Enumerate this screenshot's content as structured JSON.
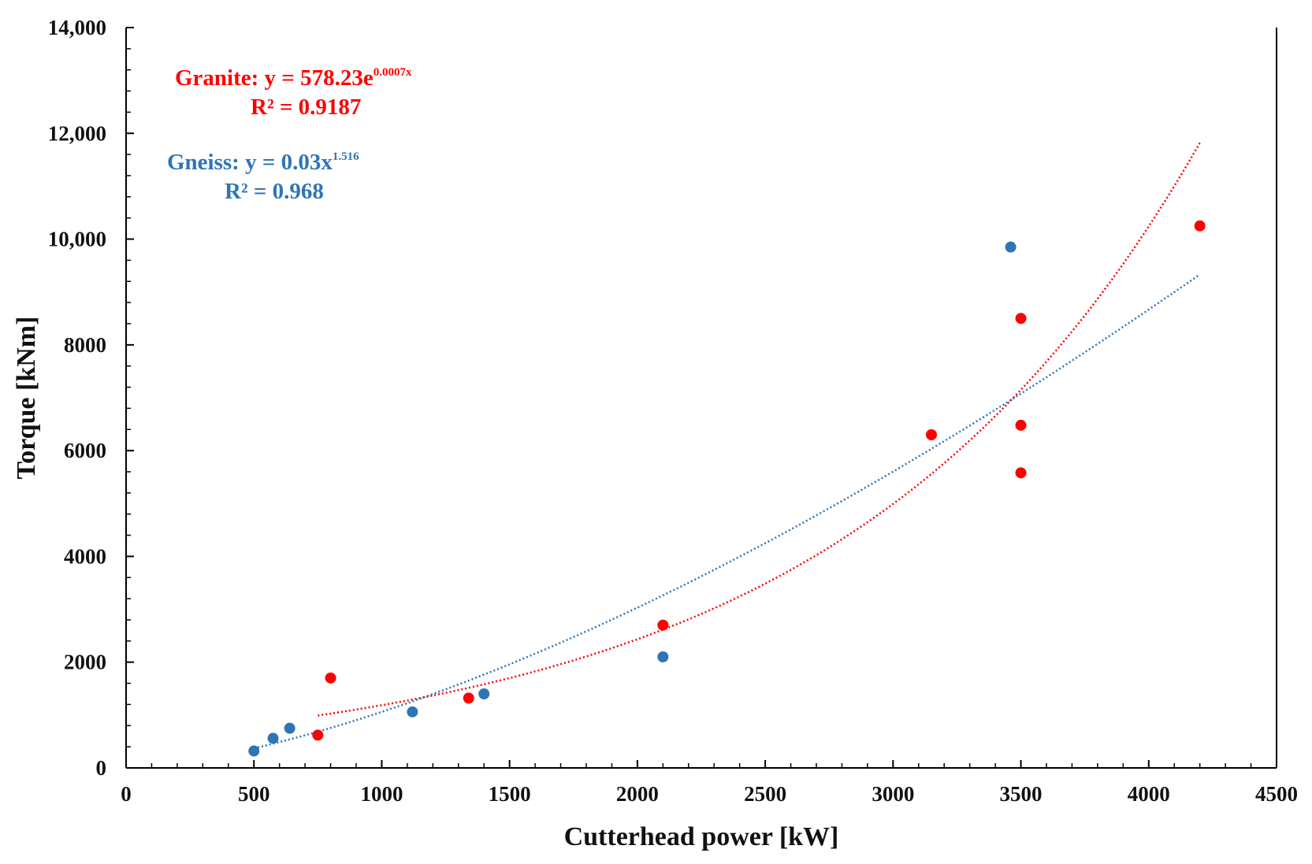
{
  "chart_data": {
    "type": "scatter",
    "xlabel": "Cutterhead power [kW]",
    "ylabel": "Torque [kNm]",
    "xlim": [
      0,
      4500
    ],
    "ylim": [
      0,
      14000
    ],
    "x_ticks": [
      0,
      500,
      1000,
      1500,
      2000,
      2500,
      3000,
      3500,
      4000,
      4500
    ],
    "x_tick_labels": [
      "0",
      "500",
      "1000",
      "1500",
      "2000",
      "2500",
      "3000",
      "3500",
      "4000",
      "4500"
    ],
    "y_ticks": [
      0,
      2000,
      4000,
      6000,
      8000,
      10000,
      12000,
      14000
    ],
    "y_tick_labels": [
      "0",
      "2000",
      "4000",
      "6000",
      "8000",
      "10,000",
      "12,000",
      "14,000"
    ],
    "series": [
      {
        "name": "Granite",
        "color": "#ff0000",
        "points": [
          {
            "x": 750,
            "y": 620
          },
          {
            "x": 800,
            "y": 1700
          },
          {
            "x": 1340,
            "y": 1320
          },
          {
            "x": 2100,
            "y": 2700
          },
          {
            "x": 3150,
            "y": 6300
          },
          {
            "x": 3500,
            "y": 8500
          },
          {
            "x": 3500,
            "y": 6480
          },
          {
            "x": 3500,
            "y": 5580
          },
          {
            "x": 4200,
            "y": 10250
          }
        ],
        "trendline": {
          "type": "exponential",
          "equation": "Granite: y = 578.23e",
          "exponent": "0.0007x",
          "r2": "R² = 0.9187",
          "a": 578.23,
          "b": 0.0007185,
          "x_range": [
            750,
            4200
          ]
        }
      },
      {
        "name": "Gneiss",
        "color": "#2e75b6",
        "points": [
          {
            "x": 500,
            "y": 320
          },
          {
            "x": 575,
            "y": 560
          },
          {
            "x": 640,
            "y": 750
          },
          {
            "x": 1120,
            "y": 1060
          },
          {
            "x": 1400,
            "y": 1400
          },
          {
            "x": 2100,
            "y": 2100
          },
          {
            "x": 3460,
            "y": 9850
          }
        ],
        "trendline": {
          "type": "power",
          "equation": "Gneiss: y = 0.03x",
          "exponent": "1.516",
          "r2": "R² = 0.968",
          "a": 0.03,
          "b": 1.516,
          "x_range": [
            500,
            4200
          ]
        }
      }
    ]
  }
}
